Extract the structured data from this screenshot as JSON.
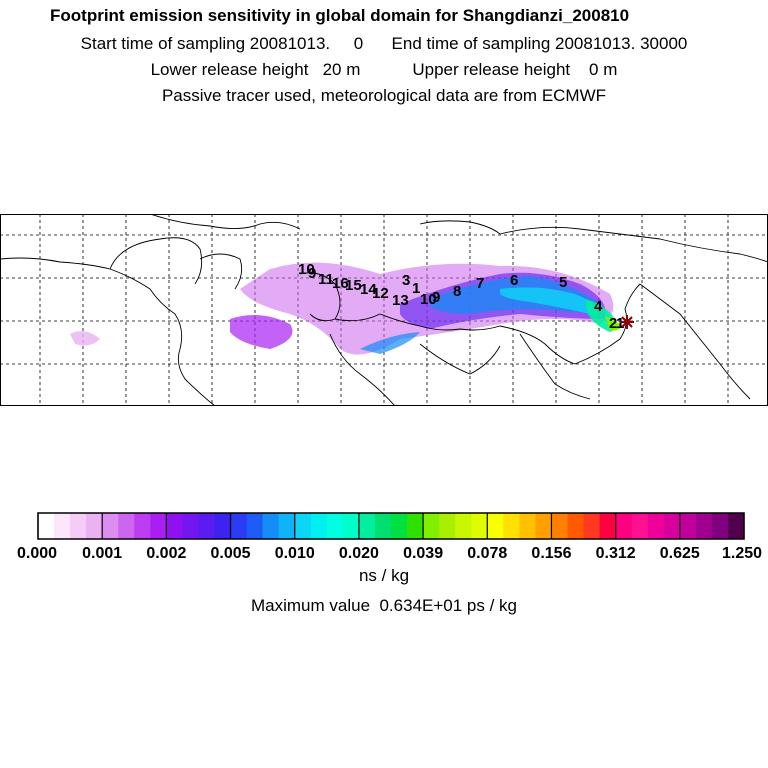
{
  "header": {
    "title": "Footprint emission sensitivity in global domain for Shangdianzi_200810",
    "line2": "Start time of sampling 20081013.     0      End time of sampling 20081013. 30000",
    "line3": "Lower release height   20 m           Upper release height    0 m",
    "line4": "Passive tracer used, meteorological data are from ECMWF"
  },
  "map": {
    "trajectory_labels": [
      "10",
      "9",
      "11",
      "16",
      "15",
      "14",
      "12",
      "13",
      "1",
      "3",
      "10",
      "9",
      "8",
      "7",
      "6",
      "5",
      "4",
      "2",
      "1"
    ],
    "station_marker": "station-star"
  },
  "colorbar": {
    "tick_labels": [
      "0.000",
      "0.001",
      "0.002",
      "0.005",
      "0.010",
      "0.020",
      "0.039",
      "0.078",
      "0.156",
      "0.312",
      "0.625",
      "1.250"
    ],
    "colors": [
      "#ffffff",
      "#fbe6fb",
      "#f4ccf6",
      "#eab2f2",
      "#dc8ef0",
      "#cc66ee",
      "#bb3ff0",
      "#a91ff2",
      "#8f11f2",
      "#7516f0",
      "#5a1cf0",
      "#3d22f0",
      "#2a3cf4",
      "#1e5cf6",
      "#168cf6",
      "#10b4f6",
      "#0cd6f6",
      "#00f0f0",
      "#00ffe0",
      "#00ffc8",
      "#00f0a0",
      "#00e070",
      "#00e040",
      "#30e000",
      "#80f000",
      "#a8f000",
      "#c8f800",
      "#e0fc00",
      "#f8ff00",
      "#ffe000",
      "#ffc000",
      "#ffa000",
      "#ff8000",
      "#ff5a00",
      "#ff3a20",
      "#ff0040",
      "#ff0080",
      "#ff1090",
      "#f0009a",
      "#d8009c",
      "#c0009a",
      "#a00090",
      "#800080",
      "#50004c"
    ],
    "unit": "ns / kg",
    "max_value": "Maximum value  0.634E+01 ps / kg"
  }
}
